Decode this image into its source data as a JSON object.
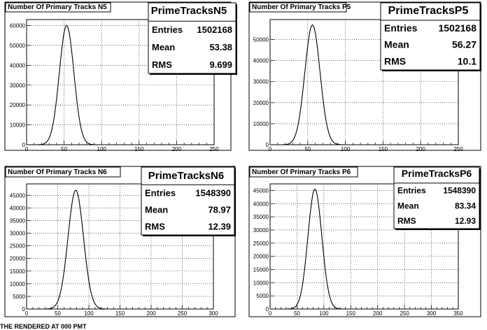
{
  "footer_text": "THE RENDERED AT 000 PMT",
  "chart_data": [
    {
      "type": "histogram",
      "title": "Number Of Primary Tracks N5",
      "stats": {
        "name": "PrimeTracksN5",
        "entries_label": "Entries",
        "entries": "1502168",
        "mean_label": "Mean",
        "mean": "53.38",
        "rms_label": "RMS",
        "rms": "9.699"
      },
      "xlim": [
        0,
        250
      ],
      "ylim": [
        0,
        63000
      ],
      "xticks": [
        0,
        50,
        100,
        150,
        200,
        250
      ],
      "yticks": [
        0,
        10000,
        20000,
        30000,
        40000,
        50000,
        60000
      ],
      "peak": 60000,
      "mean": 53.38,
      "sigma": 9.699
    },
    {
      "type": "histogram",
      "title": "Number Of Primary Tracks P5",
      "stats": {
        "name": "PrimeTracksP5",
        "entries_label": "Entries",
        "entries": "1502168",
        "mean_label": "Mean",
        "mean": "56.27",
        "rms_label": "RMS",
        "rms": "10.1"
      },
      "xlim": [
        0,
        250
      ],
      "ylim": [
        0,
        59500
      ],
      "xticks": [
        0,
        50,
        100,
        150,
        200,
        250
      ],
      "yticks": [
        0,
        10000,
        20000,
        30000,
        40000,
        50000
      ],
      "peak": 57000,
      "mean": 56.27,
      "sigma": 10.1
    },
    {
      "type": "histogram",
      "title": "Number Of Primary Tracks N6",
      "stats": {
        "name": "PrimeTracksN6",
        "entries_label": "Entries",
        "entries": "1548390",
        "mean_label": "Mean",
        "mean": "78.97",
        "rms_label": "RMS",
        "rms": "12.39"
      },
      "xlim": [
        0,
        300
      ],
      "ylim": [
        0,
        49500
      ],
      "xticks": [
        0,
        50,
        100,
        150,
        200,
        250,
        300
      ],
      "yticks": [
        0,
        5000,
        10000,
        15000,
        20000,
        25000,
        30000,
        35000,
        40000,
        45000
      ],
      "peak": 47000,
      "mean": 78.97,
      "sigma": 12.39
    },
    {
      "type": "histogram",
      "title": "Number Of Primary Tracks P6",
      "stats": {
        "name": "PrimeTracksP6",
        "entries_label": "Entries",
        "entries": "1548390",
        "mean_label": "Mean",
        "mean": "83.34",
        "rms_label": "RMS",
        "rms": "12.93"
      },
      "xlim": [
        0,
        350
      ],
      "ylim": [
        0,
        47500
      ],
      "xticks": [
        0,
        50,
        100,
        150,
        200,
        250,
        300,
        350
      ],
      "yticks": [
        0,
        5000,
        10000,
        15000,
        20000,
        25000,
        30000,
        35000,
        40000,
        45000
      ],
      "peak": 45500,
      "mean": 83.34,
      "sigma": 12.93
    }
  ]
}
